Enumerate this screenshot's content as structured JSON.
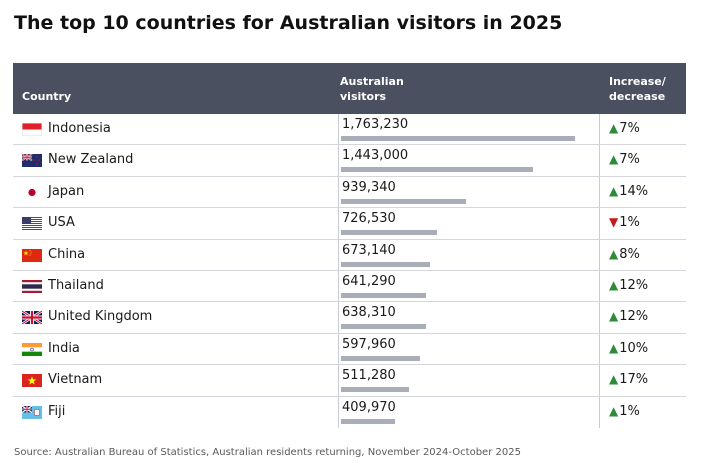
{
  "title": "The top 10 countries for Australian visitors in 2025",
  "headers": {
    "country": "Country",
    "visitors_line1": "Australian",
    "visitors_line2": "visitors",
    "change_line1": "Increase/",
    "change_line2": "decrease"
  },
  "rows": [
    {
      "country": "Indonesia",
      "flag": "indonesia-flag-icon",
      "visitors_label": "1,763,230",
      "change": "7%",
      "direction": "up"
    },
    {
      "country": "New Zealand",
      "flag": "new-zealand-flag-icon",
      "visitors_label": "1,443,000",
      "change": "7%",
      "direction": "up"
    },
    {
      "country": "Japan",
      "flag": "japan-flag-icon",
      "visitors_label": "939,340",
      "change": "14%",
      "direction": "up"
    },
    {
      "country": "USA",
      "flag": "usa-flag-icon",
      "visitors_label": "726,530",
      "change": "1%",
      "direction": "down"
    },
    {
      "country": "China",
      "flag": "china-flag-icon",
      "visitors_label": "673,140",
      "change": "8%",
      "direction": "up"
    },
    {
      "country": "Thailand",
      "flag": "thailand-flag-icon",
      "visitors_label": "641,290",
      "change": "12%",
      "direction": "up"
    },
    {
      "country": "United Kingdom",
      "flag": "uk-flag-icon",
      "visitors_label": "638,310",
      "change": "12%",
      "direction": "up"
    },
    {
      "country": "India",
      "flag": "india-flag-icon",
      "visitors_label": "597,960",
      "change": "10%",
      "direction": "up"
    },
    {
      "country": "Vietnam",
      "flag": "vietnam-flag-icon",
      "visitors_label": "511,280",
      "change": "17%",
      "direction": "up"
    },
    {
      "country": "Fiji",
      "flag": "fiji-flag-icon",
      "visitors_label": "409,970",
      "change": "1%",
      "direction": "up"
    }
  ],
  "source": "Source: Australian Bureau of Statistics, Australian residents returning, November 2024-October 2025",
  "colors": {
    "header_bg": "#4a5060",
    "bar": "#a9adb8",
    "up": "#2e8b3a",
    "down": "#c51a1a"
  },
  "chart_data": {
    "type": "table",
    "title": "The top 10 countries for Australian visitors in 2025",
    "categories": [
      "Indonesia",
      "New Zealand",
      "Japan",
      "USA",
      "China",
      "Thailand",
      "United Kingdom",
      "India",
      "Vietnam",
      "Fiji"
    ],
    "series": [
      {
        "name": "Australian visitors",
        "values": [
          1763230,
          1443000,
          939340,
          726530,
          673140,
          641290,
          638310,
          597960,
          511280,
          409970
        ]
      },
      {
        "name": "Increase/decrease (%)",
        "values": [
          7,
          7,
          14,
          -1,
          8,
          12,
          12,
          10,
          17,
          1
        ]
      }
    ],
    "bar_max": 1763230
  }
}
